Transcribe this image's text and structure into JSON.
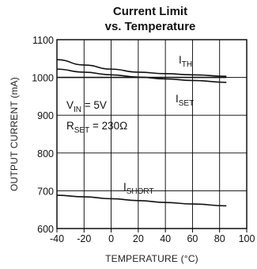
{
  "chart_data": {
    "type": "line",
    "title": "Current Limit",
    "subtitle": "vs. Temperature",
    "xlabel": "TEMPERATURE (°C)",
    "ylabel": "OUTPUT CURRENT (mA)",
    "xlim": [
      -40,
      100
    ],
    "ylim": [
      600,
      1100
    ],
    "xticks": [
      -40,
      -20,
      0,
      20,
      40,
      60,
      80,
      100
    ],
    "yticks": [
      600,
      700,
      800,
      900,
      1000,
      1100
    ],
    "grid": true,
    "annotations": {
      "conditions_line1": {
        "main": "V",
        "sub": "IN",
        "rest": " = 5V"
      },
      "conditions_line2": {
        "main": "R",
        "sub": "SET",
        "rest": " = 230Ω"
      }
    },
    "series": [
      {
        "label_main": "I",
        "label_sub": "TH",
        "x": [
          -40,
          -20,
          0,
          20,
          40,
          60,
          85
        ],
        "y": [
          1047,
          1033,
          1022,
          1014,
          1010,
          1007,
          1003
        ]
      },
      {
        "label_main": "I",
        "label_sub": "SET",
        "x": [
          -40,
          -20,
          0,
          20,
          40,
          60,
          85
        ],
        "y": [
          1022,
          1014,
          1007,
          1001,
          996,
          992,
          987
        ]
      },
      {
        "label_main": "I",
        "label_sub": "SHORT",
        "x": [
          -40,
          -20,
          0,
          20,
          40,
          60,
          85
        ],
        "y": [
          688,
          684,
          679,
          674,
          669,
          665,
          660
        ]
      }
    ],
    "reference_line_y": 1000
  }
}
